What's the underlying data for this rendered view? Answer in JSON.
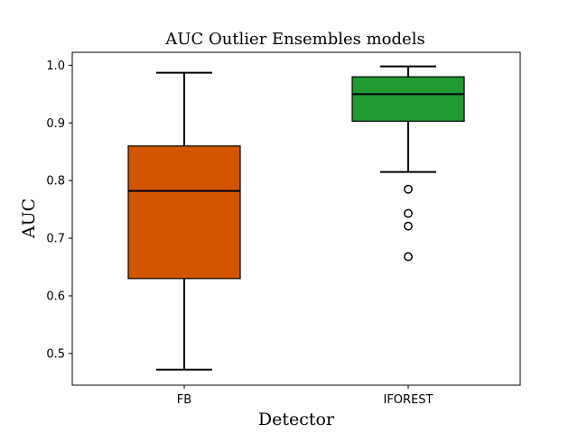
{
  "chart_data": {
    "type": "box",
    "title": "AUC Outlier Ensembles models",
    "xlabel": "Detector",
    "ylabel": "AUC",
    "categories": [
      "FB",
      "IFOREST"
    ],
    "ylim": [
      0.445,
      1.0225
    ],
    "yticks": [
      0.5,
      0.6,
      0.7,
      0.8,
      0.9,
      1.0
    ],
    "ytick_labels": [
      "0.5",
      "0.6",
      "0.7",
      "0.8",
      "0.9",
      "1.0"
    ],
    "grid": false,
    "legend": false,
    "boxes": [
      {
        "category": "FB",
        "color": "#d45500",
        "whisker_low": 0.472,
        "q1": 0.63,
        "median": 0.782,
        "q3": 0.86,
        "whisker_high": 0.987,
        "outliers": []
      },
      {
        "category": "IFOREST",
        "color": "#229933",
        "whisker_low": 0.815,
        "q1": 0.903,
        "median": 0.95,
        "q3": 0.98,
        "whisker_high": 0.998,
        "outliers": [
          0.785,
          0.743,
          0.721,
          0.668
        ]
      }
    ]
  }
}
